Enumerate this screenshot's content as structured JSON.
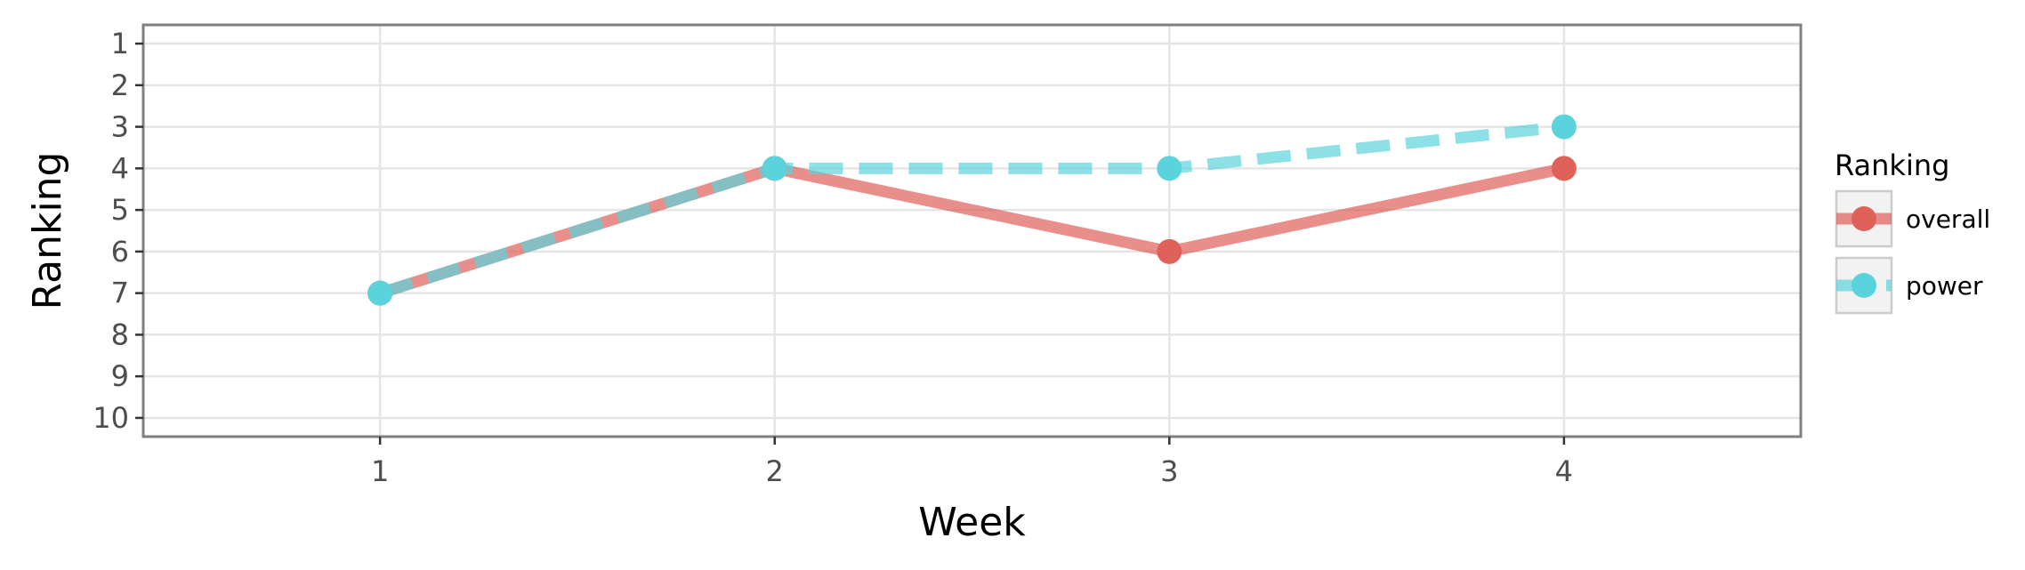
{
  "chart_data": {
    "type": "line",
    "title": "",
    "xlabel": "Week",
    "ylabel": "Ranking",
    "x": [
      1,
      2,
      3,
      4
    ],
    "xlim": [
      0.4,
      4.6
    ],
    "ylim": [
      10.45,
      0.55
    ],
    "y_reversed": true,
    "xticks": [
      "1",
      "2",
      "3",
      "4"
    ],
    "yticks": [
      "1",
      "2",
      "3",
      "4",
      "5",
      "6",
      "7",
      "8",
      "9",
      "10"
    ],
    "grid": true,
    "legend": {
      "title": "Ranking",
      "position": "right"
    },
    "series": [
      {
        "name": "overall",
        "values": [
          7,
          4,
          6,
          4
        ],
        "color": "#e0605a",
        "linestyle": "solid"
      },
      {
        "name": "power",
        "values": [
          7,
          4,
          4,
          3
        ],
        "color": "#5bd3dc",
        "linestyle": "dashed"
      }
    ]
  }
}
